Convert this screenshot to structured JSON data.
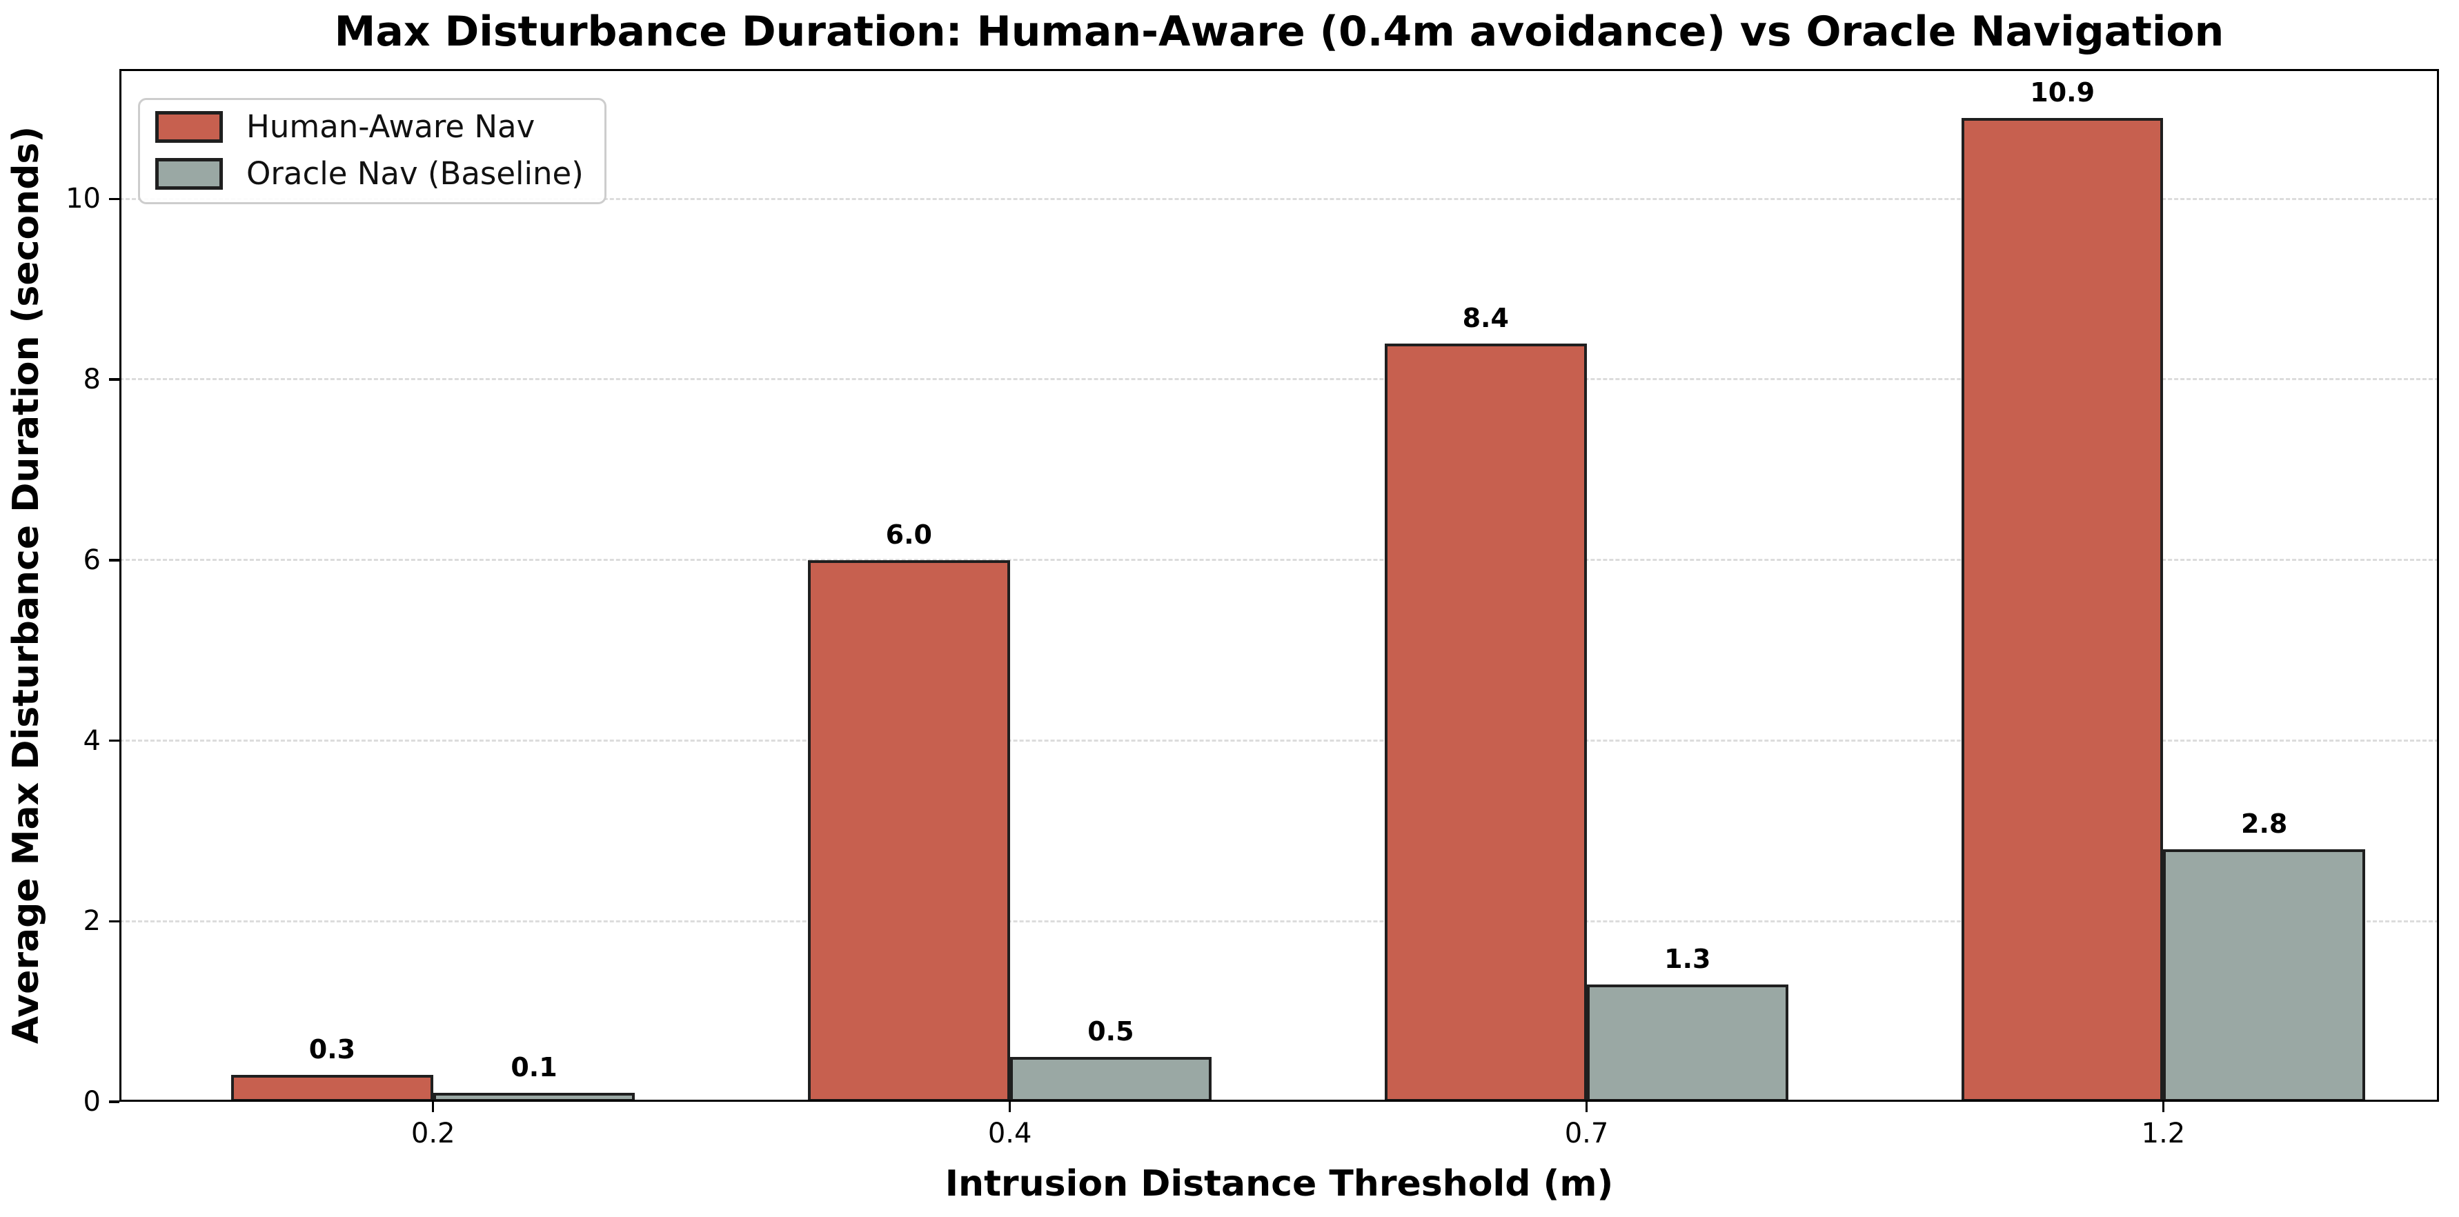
{
  "chart_data": {
    "type": "bar",
    "title": "Max Disturbance Duration: Human-Aware (0.4m avoidance) vs Oracle Navigation",
    "xlabel": "Intrusion Distance Threshold (m)",
    "ylabel": "Average Max Disturbance Duration (seconds)",
    "categories": [
      "0.2",
      "0.4",
      "0.7",
      "1.2"
    ],
    "series": [
      {
        "name": "Human-Aware Nav",
        "color": "#C7604F",
        "edge_color": "#1F1F1F",
        "values": [
          0.3,
          6.0,
          8.4,
          10.9
        ],
        "value_labels": [
          "0.3",
          "6.0",
          "8.4",
          "10.9"
        ]
      },
      {
        "name": "Oracle Nav (Baseline)",
        "color": "#9AA8A4",
        "edge_color": "#1F1F1F",
        "values": [
          0.1,
          0.5,
          1.3,
          2.8
        ],
        "value_labels": [
          "0.1",
          "0.5",
          "1.3",
          "2.8"
        ]
      }
    ],
    "yticks": [
      0,
      2,
      4,
      6,
      8,
      10
    ],
    "ytick_labels": [
      "0",
      "2",
      "4",
      "6",
      "8",
      "10"
    ],
    "ylim": [
      0,
      11.44
    ],
    "xlim": [
      -0.544,
      3.478
    ],
    "bar_width": 0.35,
    "grid": true,
    "grid_color": "#DCDCDC",
    "grid_style": "dashed",
    "legend_position": "upper left",
    "legend_border_color": "#CDCDCD",
    "axis_color": "#000000",
    "background": "#FFFFFF"
  }
}
